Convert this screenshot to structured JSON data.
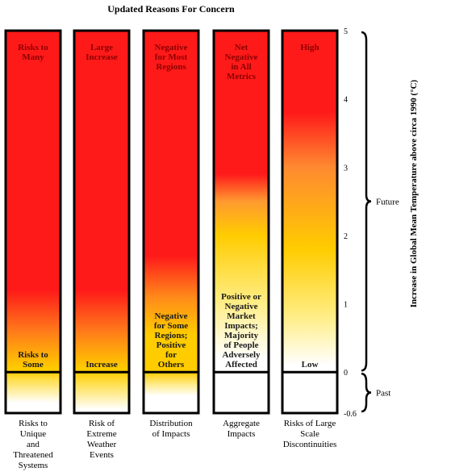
{
  "chart_data": {
    "type": "bar",
    "title": "Updated Reasons For Concern",
    "ylabel": "Increase in Global Mean Temperature above circa 1990 (°C)",
    "ylim": [
      -0.6,
      5
    ],
    "yticks": [
      "5",
      "4",
      "3",
      "2",
      "1",
      "0",
      "-0.6"
    ],
    "ranges": [
      {
        "label": "Future",
        "from": 0,
        "to": 5
      },
      {
        "label": "Past",
        "from": -0.6,
        "to": 0
      }
    ],
    "categories": [
      "Risks to Unique and Threatened Systems",
      "Risk of Extreme Weather Events",
      "Distribution of Impacts",
      "Aggregate Impacts",
      "Risks of Large Scale Discontinuities"
    ],
    "bars": [
      {
        "category_lines": [
          "Risks to",
          "Unique",
          "and",
          "Threatened",
          "Systems"
        ],
        "top_label_lines": [
          "Risks to",
          "Many"
        ],
        "low_label_lines": [
          "Risks to",
          "Some"
        ],
        "gradient": [
          {
            "t": 5,
            "c": "#ff1a1a"
          },
          {
            "t": 1.2,
            "c": "#ff1a1a"
          },
          {
            "t": 0.6,
            "c": "#ff7a1a"
          },
          {
            "t": 0.05,
            "c": "#ffcc00"
          },
          {
            "t": 0,
            "c": "#ffcc00"
          },
          {
            "t": -0.1,
            "c": "#ffdd44"
          },
          {
            "t": -0.45,
            "c": "#ffffff"
          },
          {
            "t": -0.6,
            "c": "#ffffff"
          }
        ]
      },
      {
        "category_lines": [
          "Risk of",
          "Extreme",
          "Weather",
          "Events"
        ],
        "top_label_lines": [
          "Large",
          "Increase"
        ],
        "low_label_lines": [
          "Increase"
        ],
        "gradient": [
          {
            "t": 5,
            "c": "#ff1a1a"
          },
          {
            "t": 1.2,
            "c": "#ff1a1a"
          },
          {
            "t": 0.6,
            "c": "#ff7a1a"
          },
          {
            "t": 0.05,
            "c": "#ffcc00"
          },
          {
            "t": 0,
            "c": "#ffcc00"
          },
          {
            "t": -0.15,
            "c": "#ffdd44"
          },
          {
            "t": -0.55,
            "c": "#ffffff"
          },
          {
            "t": -0.6,
            "c": "#ffffff"
          }
        ]
      },
      {
        "category_lines": [
          "Distribution",
          "of Impacts"
        ],
        "top_label_lines": [
          "Negative",
          "for Most",
          "Regions"
        ],
        "low_label_lines": [
          "Negative",
          "for Some",
          "Regions;",
          "Positive",
          "for",
          "Others"
        ],
        "gradient": [
          {
            "t": 5,
            "c": "#ff1a1a"
          },
          {
            "t": 1.7,
            "c": "#ff1a1a"
          },
          {
            "t": 1.1,
            "c": "#ff8a1a"
          },
          {
            "t": 0.55,
            "c": "#ffcc00"
          },
          {
            "t": 0,
            "c": "#ffcc00"
          },
          {
            "t": -0.2,
            "c": "#ffee99"
          },
          {
            "t": -0.35,
            "c": "#ffffff"
          },
          {
            "t": -0.6,
            "c": "#ffffff"
          }
        ]
      },
      {
        "category_lines": [
          "Aggregate",
          "Impacts"
        ],
        "top_label_lines": [
          "Net",
          "Negative",
          "in All",
          "Metrics"
        ],
        "low_label_lines": [
          "Positive or",
          "Negative",
          "Market",
          "Impacts;",
          "Majority",
          "of People",
          "Adversely",
          "Affected"
        ],
        "gradient": [
          {
            "t": 5,
            "c": "#ff1a1a"
          },
          {
            "t": 2.9,
            "c": "#ff1a1a"
          },
          {
            "t": 2.5,
            "c": "#ff9a30"
          },
          {
            "t": 2.0,
            "c": "#ffcc00"
          },
          {
            "t": 1.0,
            "c": "#ffee88"
          },
          {
            "t": 0.2,
            "c": "#ffffff"
          },
          {
            "t": -0.6,
            "c": "#ffffff"
          }
        ]
      },
      {
        "category_lines": [
          "Risks of Large",
          "Scale",
          "Discontinuities"
        ],
        "top_label_lines": [
          "High"
        ],
        "low_label_lines": [
          "Low"
        ],
        "gradient": [
          {
            "t": 5,
            "c": "#ff1a1a"
          },
          {
            "t": 3.8,
            "c": "#ff1a1a"
          },
          {
            "t": 3.0,
            "c": "#ff8a30"
          },
          {
            "t": 1.8,
            "c": "#ffcc00"
          },
          {
            "t": 0.8,
            "c": "#ffee88"
          },
          {
            "t": 0.1,
            "c": "#ffffff"
          },
          {
            "t": -0.6,
            "c": "#ffffff"
          }
        ]
      }
    ]
  }
}
